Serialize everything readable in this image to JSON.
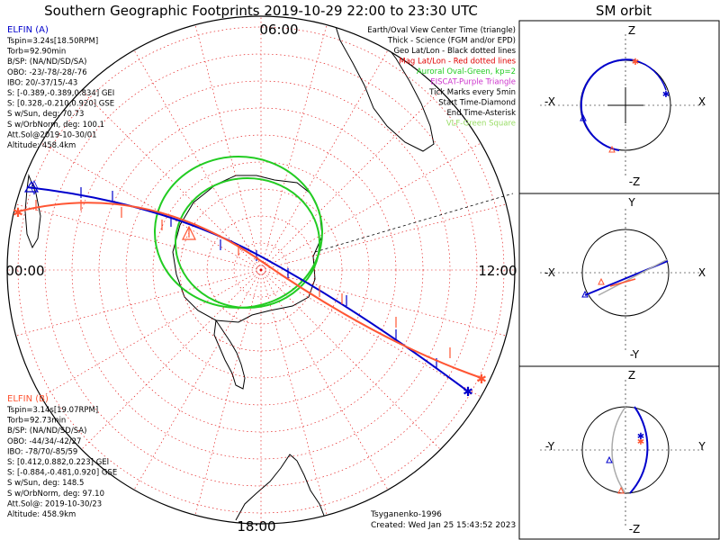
{
  "title": "Southern Geographic Footprints 2019-10-29 22:00 to 23:30 UTC",
  "clock": {
    "top": "06:00",
    "left": "00:00",
    "right": "12:00",
    "bottom": "18:00"
  },
  "legend": [
    {
      "text": "Earth/Oval View Center Time (triangle)",
      "color": "#000000"
    },
    {
      "text": "Thick - Science (FGM and/or EPD)",
      "color": "#000000"
    },
    {
      "text": "Geo Lat/Lon - Black dotted lines",
      "color": "#000000"
    },
    {
      "text": "Mag Lat/Lon - Red dotted lines",
      "color": "#e00000"
    },
    {
      "text": "Auroral Oval-Green, kp=2",
      "color": "#22cc22"
    },
    {
      "text": "EISCAT-Purple Triangle",
      "color": "#cc33cc"
    },
    {
      "text": "Tick Marks every 5min",
      "color": "#000000"
    },
    {
      "text": "Start Time-Diamond",
      "color": "#000000"
    },
    {
      "text": "End Time-Asterisk",
      "color": "#000000"
    },
    {
      "text": "VLF-Green Square",
      "color": "#99dd66"
    }
  ],
  "elfin_a": {
    "title": "ELFIN (A)",
    "color": "#0000cc",
    "lines": [
      "Tspin=3.24s[18.50RPM]",
      "Torb=92.90min",
      "B/SP: (NA/ND/SD/SA)",
      "OBO: -23/-78/-28/-76",
      "IBO: 20/-37/15/-43",
      "S: [-0.389,-0.389,0.834] GEI",
      "S: [0.328,-0.210,0.920] GSE",
      "S w/Sun, deg: 70.73",
      "S w/OrbNorm, deg: 100.1",
      "Att.Sol@2019-10-30/01",
      "Altitude: 458.4km"
    ]
  },
  "elfin_b": {
    "title": "ELFIN (B)",
    "color": "#ff5533",
    "lines": [
      "Tspin=3.14s[19.07RPM]",
      "Torb=92.73min",
      "B/SP: (NA/ND/SD/SA)",
      "OBO: -44/34/-42/27",
      "IBO: -78/70/-85/59",
      "S: [0.412,0.882,0.223] GEI",
      "S: [-0.884,-0.481,0.920] GSE",
      "S w/Sun, deg: 148.5",
      "S w/OrbNorm, deg: 97.10",
      "Att.Sol@: 2019-10-30/23",
      "Altitude: 458.9km"
    ]
  },
  "credit": {
    "model": "Tsyganenko-1996",
    "created": "Created: Wed Jan 25 15:43:52 2023"
  },
  "orbit": {
    "title": "SM orbit",
    "panels": [
      {
        "top": "Z",
        "bottom": "-Z",
        "left": "-X",
        "right": "X"
      },
      {
        "top": "Y",
        "bottom": "-Y",
        "left": "-X",
        "right": "X"
      },
      {
        "top": "Z",
        "bottom": "-Z",
        "left": "-Y",
        "right": "Y"
      }
    ]
  },
  "colors": {
    "a": "#0000cc",
    "b": "#ff5533",
    "oval": "#22cc22",
    "grid_mag": "#e00000",
    "grid_geo": "#000000"
  }
}
